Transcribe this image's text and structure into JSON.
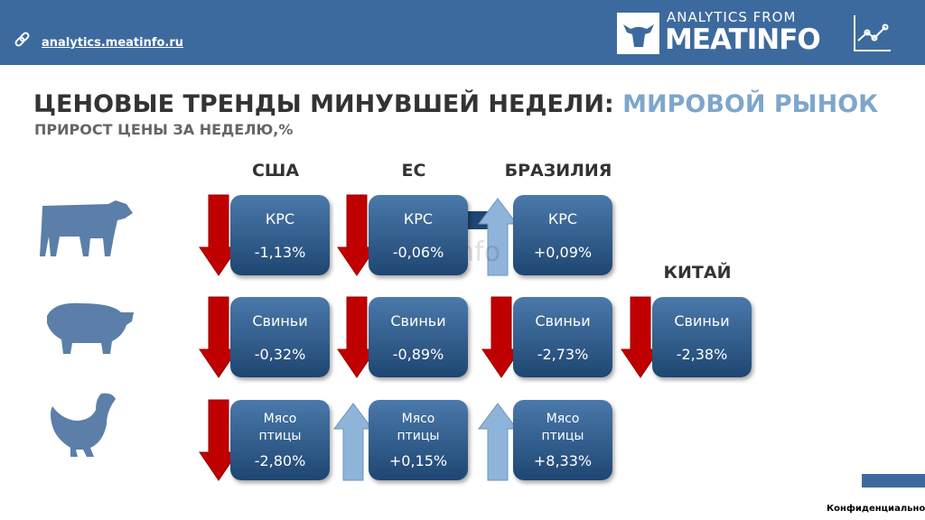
{
  "header": {
    "link": "analytics.meatinfo.ru",
    "brand_top": "ANALYTICS FROM",
    "brand_name": "MEATINFO"
  },
  "title": {
    "main": "ЦЕНОВЫЕ ТРЕНДЫ МИНУВШЕЙ НЕДЕЛИ:",
    "highlight": "МИРОВОЙ РЫНОК"
  },
  "subtitle": "ПРИРОСТ ЦЕНЫ ЗА НЕДЕЛЮ,%",
  "watermark": "meatinfo",
  "regions": [
    {
      "name": "США",
      "cards": [
        {
          "category": "КРС",
          "value": "-1,13%",
          "trend": "down"
        },
        {
          "category": "Свиньи",
          "value": "-0,32%",
          "trend": "down"
        },
        {
          "category": "Мясо птицы",
          "value": "-2,80%",
          "trend": "down"
        }
      ]
    },
    {
      "name": "ЕС",
      "cards": [
        {
          "category": "КРС",
          "value": "-0,06%",
          "trend": "down"
        },
        {
          "category": "Свиньи",
          "value": "-0,89%",
          "trend": "down"
        },
        {
          "category": "Мясо птицы",
          "value": "+0,15%",
          "trend": "up"
        }
      ]
    },
    {
      "name": "БРАЗИЛИЯ",
      "cards": [
        {
          "category": "КРС",
          "value": "+0,09%",
          "trend": "up"
        },
        {
          "category": "Свиньи",
          "value": "-2,73%",
          "trend": "down"
        },
        {
          "category": "Мясо птицы",
          "value": "+8,33%",
          "trend": "up"
        }
      ]
    },
    {
      "name": "КИТАЙ",
      "cards": [
        null,
        {
          "category": "Свиньи",
          "value": "-2,38%",
          "trend": "down"
        },
        null
      ]
    }
  ],
  "footer": "Конфиденциально"
}
